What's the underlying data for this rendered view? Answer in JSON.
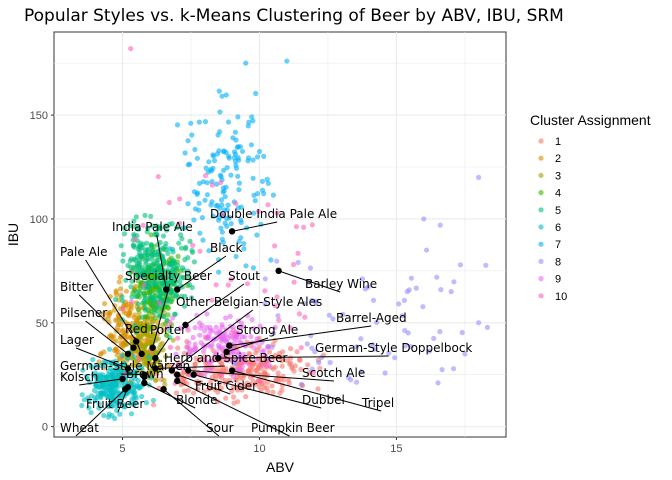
{
  "title": "Popular Styles vs. k-Means Clustering of Beer by ABV, IBU, SRM",
  "chart_data": {
    "type": "scatter",
    "title": "Popular Styles vs. k-Means Clustering of Beer by ABV, IBU, SRM",
    "xlabel": "ABV",
    "ylabel": "IBU",
    "xlim": [
      2.5,
      19
    ],
    "ylim": [
      -5,
      190
    ],
    "xticks": [
      5,
      10,
      15
    ],
    "yticks": [
      0,
      50,
      100,
      150
    ],
    "grid": true,
    "legend": {
      "title": "Cluster Assignment",
      "placement": "right",
      "items": [
        {
          "label": "1",
          "color": "#F8766D"
        },
        {
          "label": "2",
          "color": "#D89000"
        },
        {
          "label": "3",
          "color": "#A3A500"
        },
        {
          "label": "4",
          "color": "#39B600"
        },
        {
          "label": "5",
          "color": "#00BF7D"
        },
        {
          "label": "6",
          "color": "#00BFC4"
        },
        {
          "label": "7",
          "color": "#00B0F6"
        },
        {
          "label": "8",
          "color": "#9590FF"
        },
        {
          "label": "9",
          "color": "#E76BF3"
        },
        {
          "label": "10",
          "color": "#FF62BC"
        }
      ]
    },
    "clusters": [
      {
        "name": "1",
        "abv_range": [
          5.5,
          13.0
        ],
        "ibu_range": [
          8,
          45
        ]
      },
      {
        "name": "2",
        "abv_range": [
          3.8,
          6.8
        ],
        "ibu_range": [
          10,
          80
        ]
      },
      {
        "name": "3",
        "abv_range": [
          4.8,
          7.0
        ],
        "ibu_range": [
          15,
          60
        ]
      },
      {
        "name": "4",
        "abv_range": [
          5.0,
          7.5
        ],
        "ibu_range": [
          40,
          95
        ]
      },
      {
        "name": "5",
        "abv_range": [
          4.5,
          8.0
        ],
        "ibu_range": [
          40,
          110
        ]
      },
      {
        "name": "6",
        "abv_range": [
          3.0,
          6.5
        ],
        "ibu_range": [
          0,
          40
        ]
      },
      {
        "name": "7",
        "abv_range": [
          6.5,
          11.0
        ],
        "ibu_range": [
          60,
          175
        ]
      },
      {
        "name": "8",
        "abv_range": [
          9.0,
          18.5
        ],
        "ibu_range": [
          20,
          120
        ]
      },
      {
        "name": "9",
        "abv_range": [
          6.5,
          11.0
        ],
        "ibu_range": [
          20,
          60
        ]
      },
      {
        "name": "10",
        "abv_range": [
          5.0,
          12.0
        ],
        "ibu_range": [
          20,
          190
        ]
      }
    ],
    "styles": [
      {
        "label": "Double India Pale Ale",
        "abv": 9.0,
        "ibu": 94
      },
      {
        "label": "India Pale Ale",
        "abv": 6.6,
        "ibu": 66
      },
      {
        "label": "Black",
        "abv": 7.0,
        "ibu": 66
      },
      {
        "label": "Pale Ale",
        "abv": 5.5,
        "ibu": 41
      },
      {
        "label": "Stout",
        "abv": 7.3,
        "ibu": 49
      },
      {
        "label": "Barley Wine",
        "abv": 10.7,
        "ibu": 75
      },
      {
        "label": "Specialty Beer",
        "abv": 6.1,
        "ibu": 38
      },
      {
        "label": "Bitter",
        "abv": 5.4,
        "ibu": 38
      },
      {
        "label": "Red",
        "abv": 5.7,
        "ibu": 35
      },
      {
        "label": "Other Belgian-Style Ales",
        "abv": 6.8,
        "ibu": 27
      },
      {
        "label": "Pilsener",
        "abv": 5.2,
        "ibu": 35
      },
      {
        "label": "Porter",
        "abv": 6.2,
        "ibu": 33
      },
      {
        "label": "Barrel-Aged",
        "abv": 8.9,
        "ibu": 39
      },
      {
        "label": "Strong Ale",
        "abv": 8.8,
        "ibu": 36
      },
      {
        "label": "Lager",
        "abv": 5.2,
        "ibu": 28
      },
      {
        "label": "German-Style Doppelbock",
        "abv": 8.5,
        "ibu": 33
      },
      {
        "label": "Herb and Spice Beer",
        "abv": 6.2,
        "ibu": 28
      },
      {
        "label": "German-Style Märzen",
        "abv": 5.8,
        "ibu": 25
      },
      {
        "label": "Scotch Ale",
        "abv": 7.4,
        "ibu": 27
      },
      {
        "label": "Kolsch",
        "abv": 5.0,
        "ibu": 23
      },
      {
        "label": "Brown",
        "abv": 5.8,
        "ibu": 24
      },
      {
        "label": "Fruit Cider",
        "abv": 7.0,
        "ibu": 25
      },
      {
        "label": "Fruit Beer",
        "abv": 5.2,
        "ibu": 19
      },
      {
        "label": "Blonde",
        "abv": 5.8,
        "ibu": 21
      },
      {
        "label": "Dubbel",
        "abv": 7.6,
        "ibu": 25
      },
      {
        "label": "Tripel",
        "abv": 9.0,
        "ibu": 27
      },
      {
        "label": "Wheat",
        "abv": 5.1,
        "ibu": 18
      },
      {
        "label": "Sour",
        "abv": 6.5,
        "ibu": 18
      },
      {
        "label": "Pumpkin Beer",
        "abv": 7.0,
        "ibu": 22
      }
    ]
  }
}
